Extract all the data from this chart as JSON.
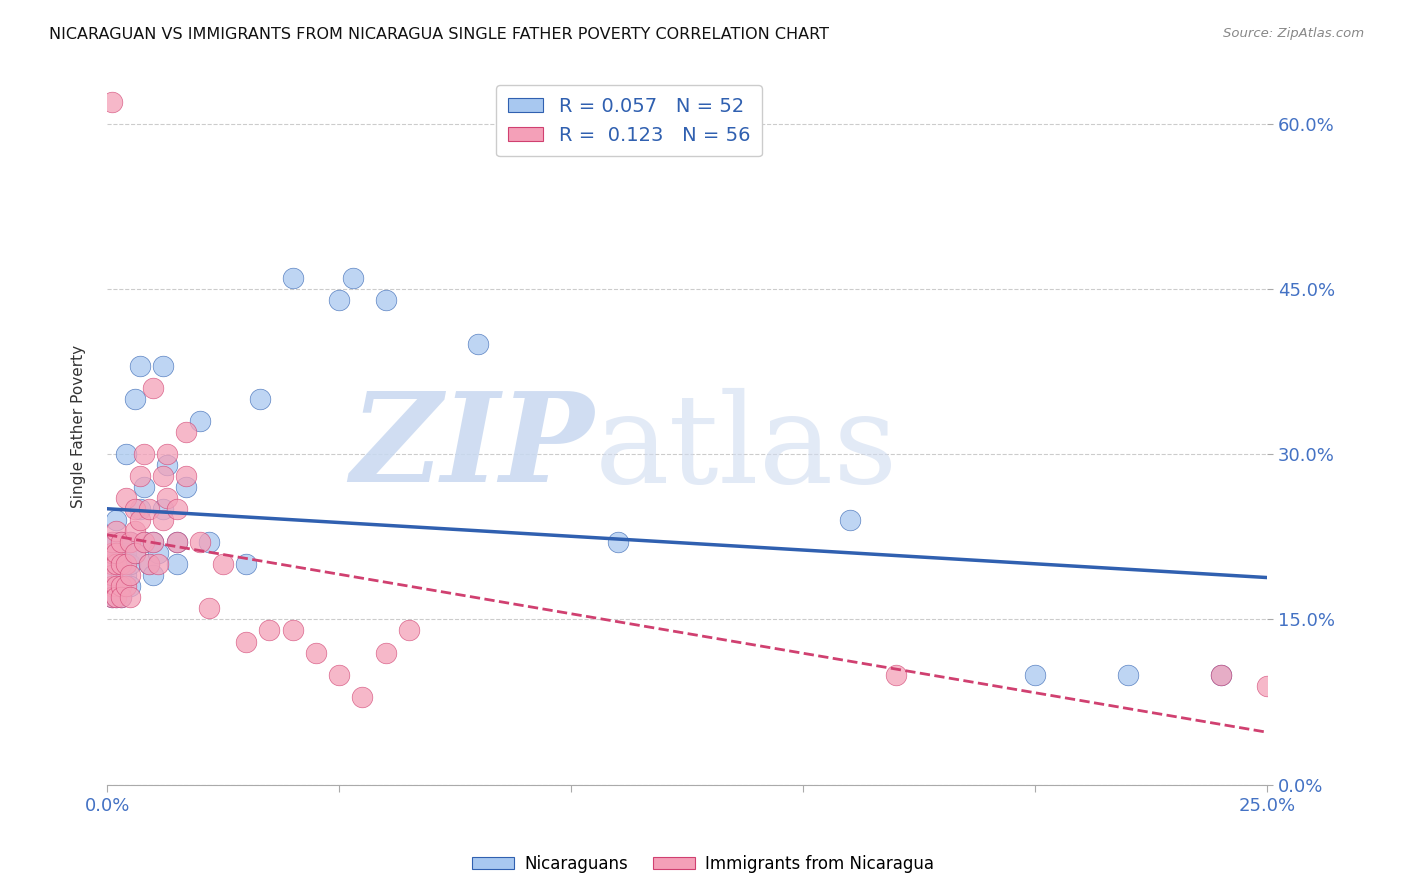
{
  "title": "NICARAGUAN VS IMMIGRANTS FROM NICARAGUA SINGLE FATHER POVERTY CORRELATION CHART",
  "source": "Source: ZipAtlas.com",
  "ylabel": "Single Father Poverty",
  "xlim": [
    0.0,
    0.25
  ],
  "ylim": [
    0.0,
    0.65
  ],
  "xticks": [
    0.0,
    0.05,
    0.1,
    0.15,
    0.2,
    0.25
  ],
  "yticks": [
    0.0,
    0.15,
    0.3,
    0.45,
    0.6
  ],
  "ytick_labels": [
    "0.0%",
    "15.0%",
    "30.0%",
    "45.0%",
    "60.0%"
  ],
  "xtick_labels": [
    "0.0%",
    "",
    "",
    "",
    "",
    "25.0%"
  ],
  "series1_label": "Nicaraguans",
  "series2_label": "Immigrants from Nicaragua",
  "series1_color": "#A8C8F0",
  "series2_color": "#F4A0B8",
  "trendline1_color": "#3060B0",
  "trendline2_color": "#D04070",
  "background_color": "#FFFFFF",
  "tick_label_color": "#4472C4",
  "series1_x": [
    0.001,
    0.001,
    0.001,
    0.001,
    0.001,
    0.001,
    0.002,
    0.002,
    0.002,
    0.002,
    0.002,
    0.002,
    0.003,
    0.003,
    0.003,
    0.003,
    0.004,
    0.004,
    0.004,
    0.005,
    0.005,
    0.005,
    0.006,
    0.006,
    0.007,
    0.007,
    0.008,
    0.008,
    0.009,
    0.01,
    0.01,
    0.011,
    0.012,
    0.012,
    0.013,
    0.015,
    0.015,
    0.017,
    0.02,
    0.022,
    0.03,
    0.033,
    0.04,
    0.05,
    0.053,
    0.06,
    0.08,
    0.11,
    0.16,
    0.2,
    0.22,
    0.24
  ],
  "series1_y": [
    0.2,
    0.21,
    0.22,
    0.18,
    0.17,
    0.19,
    0.2,
    0.22,
    0.18,
    0.24,
    0.17,
    0.21,
    0.2,
    0.22,
    0.19,
    0.17,
    0.21,
    0.3,
    0.19,
    0.2,
    0.22,
    0.18,
    0.21,
    0.35,
    0.25,
    0.38,
    0.22,
    0.27,
    0.2,
    0.19,
    0.22,
    0.21,
    0.25,
    0.38,
    0.29,
    0.2,
    0.22,
    0.27,
    0.33,
    0.22,
    0.2,
    0.35,
    0.46,
    0.44,
    0.46,
    0.44,
    0.4,
    0.22,
    0.24,
    0.1,
    0.1,
    0.1
  ],
  "series2_x": [
    0.001,
    0.001,
    0.001,
    0.001,
    0.001,
    0.001,
    0.001,
    0.002,
    0.002,
    0.002,
    0.002,
    0.002,
    0.003,
    0.003,
    0.003,
    0.003,
    0.004,
    0.004,
    0.004,
    0.005,
    0.005,
    0.005,
    0.006,
    0.006,
    0.006,
    0.007,
    0.007,
    0.008,
    0.008,
    0.009,
    0.009,
    0.01,
    0.01,
    0.011,
    0.012,
    0.012,
    0.013,
    0.013,
    0.015,
    0.015,
    0.017,
    0.017,
    0.02,
    0.022,
    0.025,
    0.03,
    0.035,
    0.04,
    0.045,
    0.05,
    0.055,
    0.06,
    0.065,
    0.17,
    0.24,
    0.25
  ],
  "series2_y": [
    0.2,
    0.21,
    0.18,
    0.17,
    0.22,
    0.19,
    0.62,
    0.2,
    0.18,
    0.23,
    0.17,
    0.21,
    0.18,
    0.22,
    0.2,
    0.17,
    0.2,
    0.26,
    0.18,
    0.22,
    0.19,
    0.17,
    0.21,
    0.25,
    0.23,
    0.28,
    0.24,
    0.22,
    0.3,
    0.2,
    0.25,
    0.22,
    0.36,
    0.2,
    0.28,
    0.24,
    0.3,
    0.26,
    0.22,
    0.25,
    0.28,
    0.32,
    0.22,
    0.16,
    0.2,
    0.13,
    0.14,
    0.14,
    0.12,
    0.1,
    0.08,
    0.12,
    0.14,
    0.1,
    0.1,
    0.09
  ]
}
